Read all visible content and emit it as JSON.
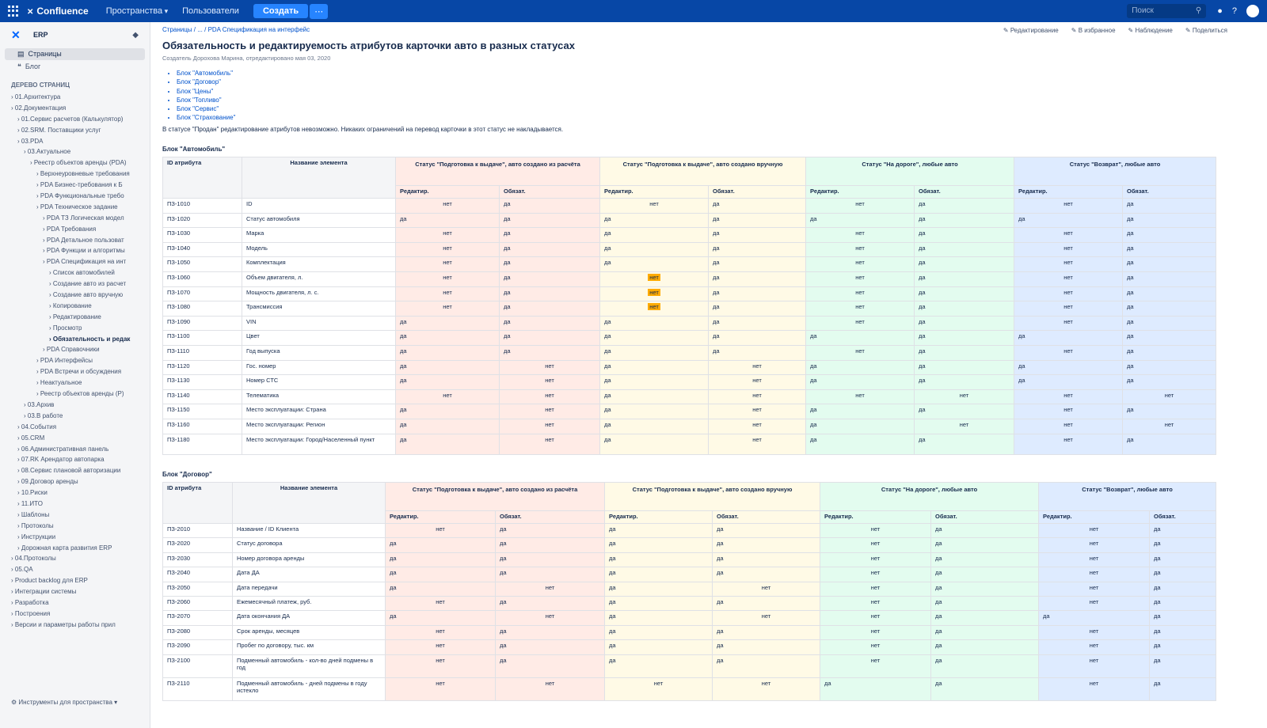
{
  "topbar": {
    "brand": "Confluence",
    "nav": [
      "Пространства",
      "Пользователи"
    ],
    "create_label": "Создать",
    "search_placeholder": "Поиск"
  },
  "sidebar": {
    "space_name": "ERP",
    "links": [
      "Страницы",
      "Блог"
    ],
    "tree_heading": "ДЕРЕВО СТРАНИЦ",
    "tree": [
      {
        "label": "01.Архитектура",
        "level": 0
      },
      {
        "label": "02.Документация",
        "level": 0
      },
      {
        "label": "01.Сервис расчетов (Калькулятор)",
        "level": 1
      },
      {
        "label": "02.SRM. Поставщики услуг",
        "level": 1
      },
      {
        "label": "03.PDA",
        "level": 1
      },
      {
        "label": "03.Актуальное",
        "level": 2
      },
      {
        "label": "Реестр объектов аренды (PDA)",
        "level": 3
      },
      {
        "label": "Верхнеуровневые требования",
        "level": 4
      },
      {
        "label": "PDA Бизнес-требования к Б",
        "level": 4
      },
      {
        "label": "PDA Функциональные требо",
        "level": 4
      },
      {
        "label": "PDA Техническое задание",
        "level": 4
      },
      {
        "label": "PDA ТЗ Логическая модел",
        "level": 5
      },
      {
        "label": "PDA Требования",
        "level": 5
      },
      {
        "label": "PDA Детальное пользоват",
        "level": 5
      },
      {
        "label": "PDA Функции и алгоритмы",
        "level": 5
      },
      {
        "label": "PDA Спецификация на инт",
        "level": 5
      },
      {
        "label": "Список автомобилей",
        "level": 6
      },
      {
        "label": "Создание авто из расчет",
        "level": 6
      },
      {
        "label": "Создание авто вручную",
        "level": 6
      },
      {
        "label": "Копирование",
        "level": 6
      },
      {
        "label": "Редактирование",
        "level": 6
      },
      {
        "label": "Просмотр",
        "level": 6
      },
      {
        "label": "Обязательность и редак",
        "level": 6,
        "current": true
      },
      {
        "label": "PDA Справочники",
        "level": 5
      },
      {
        "label": "PDA Интерфейсы",
        "level": 4
      },
      {
        "label": "PDA Встречи и обсуждения",
        "level": 4
      },
      {
        "label": "Неактуальное",
        "level": 4
      },
      {
        "label": "Реестр объектов аренды (P)",
        "level": 4
      },
      {
        "label": "03.Архив",
        "level": 2
      },
      {
        "label": "03.В работе",
        "level": 2
      },
      {
        "label": "04.События",
        "level": 1
      },
      {
        "label": "05.CRM",
        "level": 1
      },
      {
        "label": "06.Административная панель",
        "level": 1
      },
      {
        "label": "07.RK Арендатор автопарка",
        "level": 1
      },
      {
        "label": "08.Сервис плановой авторизации",
        "level": 1
      },
      {
        "label": "09.Договор аренды",
        "level": 1
      },
      {
        "label": "10.Риски",
        "level": 1
      },
      {
        "label": "11.ИТО",
        "level": 1
      },
      {
        "label": "Шаблоны",
        "level": 1
      },
      {
        "label": "Протоколы",
        "level": 1
      },
      {
        "label": "Инструкции",
        "level": 1
      },
      {
        "label": "Дорожная карта развития ERP",
        "level": 1
      },
      {
        "label": "04.Протоколы",
        "level": 0
      },
      {
        "label": "05.QA",
        "level": 0
      },
      {
        "label": "Product backlog для ERP",
        "level": 0
      },
      {
        "label": "Интеграции системы",
        "level": 0
      },
      {
        "label": "Разработка",
        "level": 0
      },
      {
        "label": "Построения",
        "level": 0
      },
      {
        "label": "Версии и параметры работы прил",
        "level": 0
      }
    ],
    "footer": "Инструменты для пространства"
  },
  "page": {
    "breadcrumb": "Страницы / ... / PDA Спецификация на интерфейс",
    "actions": [
      "Редактирование",
      "В избранное",
      "Наблюдение",
      "Поделиться"
    ],
    "title": "Обязательность и редактируемость атрибутов карточки авто в разных статусах",
    "byline": "Создатель Дорохова Марина, отредактировано мая 03, 2020",
    "blocks": [
      "Блок \"Автомобиль\"",
      "Блок \"Договор\"",
      "Блок \"Цены\"",
      "Блок \"Топливо\"",
      "Блок \"Сервис\"",
      "Блок \"Страхование\""
    ],
    "note": "В статусе \"Продан\" редактирование атрибутов невозможно. Никаких ограничений на перевод карточки в этот статус не накладывается."
  },
  "colors": {
    "s1": "#ffebe6",
    "s2": "#fffae6",
    "s3": "#e3fcef",
    "s4": "#deebff",
    "warn": "#ffab00"
  },
  "tables": [
    {
      "label": "Блок \"Автомобиль\"",
      "id_header": "ID атрибута",
      "name_header": "Название элемента",
      "statuses": [
        "Статус \"Подготовка к выдаче\", авто создано из расчёта",
        "Статус \"Подготовка к выдаче\", авто создано вручную",
        "Статус \"На дороге\", любые авто",
        "Статус \"Возврат\", любые авто"
      ],
      "sub": [
        "Редактир.",
        "Обязат."
      ],
      "rows": [
        {
          "id": "ПЗ-1010",
          "name": "ID",
          "v": [
            "нет",
            "да",
            "нет",
            "да",
            "нет",
            "да",
            "нет",
            "да"
          ]
        },
        {
          "id": "ПЗ-1020",
          "name": "Статус автомобиля",
          "v": [
            "да",
            "да",
            "да",
            "да",
            "да",
            "да",
            "да",
            "да"
          ]
        },
        {
          "id": "ПЗ-1030",
          "name": "Марка",
          "v": [
            "нет",
            "да",
            "да",
            "да",
            "нет",
            "да",
            "нет",
            "да"
          ]
        },
        {
          "id": "ПЗ-1040",
          "name": "Модель",
          "v": [
            "нет",
            "да",
            "да",
            "да",
            "нет",
            "да",
            "нет",
            "да"
          ]
        },
        {
          "id": "ПЗ-1050",
          "name": "Комплектация",
          "v": [
            "нет",
            "да",
            "да",
            "да",
            "нет",
            "да",
            "нет",
            "да"
          ]
        },
        {
          "id": "ПЗ-1060",
          "name": "Объем двигателя, л.",
          "v": [
            "нет",
            "да",
            "нет",
            "да",
            "нет",
            "да",
            "нет",
            "да"
          ],
          "warn": 2
        },
        {
          "id": "ПЗ-1070",
          "name": "Мощность двигателя, л. с.",
          "v": [
            "нет",
            "да",
            "нет",
            "да",
            "нет",
            "да",
            "нет",
            "да"
          ],
          "warn": 2
        },
        {
          "id": "ПЗ-1080",
          "name": "Трансмиссия",
          "v": [
            "нет",
            "да",
            "нет",
            "да",
            "нет",
            "да",
            "нет",
            "да"
          ],
          "warn": 2
        },
        {
          "id": "ПЗ-1090",
          "name": "VIN",
          "v": [
            "да",
            "да",
            "да",
            "да",
            "нет",
            "да",
            "нет",
            "да"
          ]
        },
        {
          "id": "ПЗ-1100",
          "name": "Цвет",
          "v": [
            "да",
            "да",
            "да",
            "да",
            "да",
            "да",
            "да",
            "да"
          ]
        },
        {
          "id": "ПЗ-1110",
          "name": "Год выпуска",
          "v": [
            "да",
            "да",
            "да",
            "да",
            "нет",
            "да",
            "нет",
            "да"
          ]
        },
        {
          "id": "ПЗ-1120",
          "name": "Гос. номер",
          "v": [
            "да",
            "нет",
            "да",
            "нет",
            "да",
            "да",
            "да",
            "да"
          ]
        },
        {
          "id": "ПЗ-1130",
          "name": "Номер СТС",
          "v": [
            "да",
            "нет",
            "да",
            "нет",
            "да",
            "да",
            "да",
            "да"
          ]
        },
        {
          "id": "ПЗ-1140",
          "name": "Телематика",
          "v": [
            "нет",
            "нет",
            "да",
            "нет",
            "нет",
            "нет",
            "нет",
            "нет"
          ]
        },
        {
          "id": "ПЗ-1150",
          "name": "Место эксплуатации: Страна",
          "v": [
            "да",
            "нет",
            "да",
            "нет",
            "да",
            "да",
            "нет",
            "да"
          ]
        },
        {
          "id": "ПЗ-1160",
          "name": "Место эксплуатации: Регион",
          "v": [
            "да",
            "нет",
            "да",
            "нет",
            "да",
            "нет",
            "нет",
            "нет"
          ]
        },
        {
          "id": "ПЗ-1180",
          "name": "Место эксплуатации: Город/Населенный пункт",
          "v": [
            "да",
            "нет",
            "да",
            "нет",
            "да",
            "да",
            "нет",
            "да"
          ]
        }
      ]
    },
    {
      "label": "Блок \"Договор\"",
      "id_header": "ID атрибута",
      "name_header": "Название элемента",
      "statuses": [
        "Статус \"Подготовка к выдаче\", авто создано из расчёта",
        "Статус \"Подготовка к выдаче\", авто создано вручную",
        "Статус \"На дороге\", любые авто",
        "Статус \"Возврат\", любые авто"
      ],
      "sub": [
        "Редактир.",
        "Обязат."
      ],
      "rows": [
        {
          "id": "ПЗ-2010",
          "name": "Название / ID Клиента",
          "v": [
            "нет",
            "да",
            "да",
            "да",
            "нет",
            "да",
            "нет",
            "да"
          ]
        },
        {
          "id": "ПЗ-2020",
          "name": "Статус договора",
          "v": [
            "да",
            "да",
            "да",
            "да",
            "нет",
            "да",
            "нет",
            "да"
          ]
        },
        {
          "id": "ПЗ-2030",
          "name": "Номер договора аренды",
          "v": [
            "да",
            "да",
            "да",
            "да",
            "нет",
            "да",
            "нет",
            "да"
          ]
        },
        {
          "id": "ПЗ-2040",
          "name": "Дата ДА",
          "v": [
            "да",
            "да",
            "да",
            "да",
            "нет",
            "да",
            "нет",
            "да"
          ]
        },
        {
          "id": "ПЗ-2050",
          "name": "Дата передачи",
          "v": [
            "да",
            "нет",
            "да",
            "нет",
            "нет",
            "да",
            "нет",
            "да"
          ]
        },
        {
          "id": "ПЗ-2060",
          "name": "Ежемесячный платеж, руб.",
          "v": [
            "нет",
            "да",
            "да",
            "да",
            "нет",
            "да",
            "нет",
            "да"
          ]
        },
        {
          "id": "ПЗ-2070",
          "name": "Дата окончания ДА",
          "v": [
            "да",
            "нет",
            "да",
            "нет",
            "нет",
            "да",
            "да",
            "да"
          ]
        },
        {
          "id": "ПЗ-2080",
          "name": "Срок аренды, месяцев",
          "v": [
            "нет",
            "да",
            "да",
            "да",
            "нет",
            "да",
            "нет",
            "да"
          ]
        },
        {
          "id": "ПЗ-2090",
          "name": "Пробег по договору, тыс. км",
          "v": [
            "нет",
            "да",
            "да",
            "да",
            "нет",
            "да",
            "нет",
            "да"
          ]
        },
        {
          "id": "ПЗ-2100",
          "name": "Подменный автомобиль - кол-во дней подмены в год",
          "v": [
            "нет",
            "да",
            "да",
            "да",
            "нет",
            "да",
            "нет",
            "да"
          ]
        },
        {
          "id": "ПЗ-2110",
          "name": "Подменный автомобиль - дней подмены в году истекло",
          "v": [
            "нет",
            "нет",
            "нет",
            "нет",
            "да",
            "да",
            "нет",
            "да"
          ]
        }
      ]
    }
  ]
}
